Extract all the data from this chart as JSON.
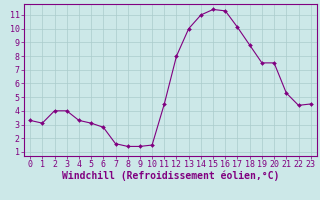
{
  "x": [
    0,
    1,
    2,
    3,
    4,
    5,
    6,
    7,
    8,
    9,
    10,
    11,
    12,
    13,
    14,
    15,
    16,
    17,
    18,
    19,
    20,
    21,
    22,
    23
  ],
  "y": [
    3.3,
    3.1,
    4.0,
    4.0,
    3.3,
    3.1,
    2.8,
    1.6,
    1.4,
    1.4,
    1.5,
    4.5,
    8.0,
    10.0,
    11.0,
    11.4,
    11.3,
    10.1,
    8.8,
    7.5,
    7.5,
    5.3,
    4.4,
    4.5
  ],
  "line_color": "#800080",
  "marker": "D",
  "marker_size": 2,
  "bg_color": "#cce8e8",
  "grid_color": "#aacccc",
  "xlabel": "Windchill (Refroidissement éolien,°C)",
  "xlim": [
    -0.5,
    23.5
  ],
  "ylim": [
    0.7,
    11.8
  ],
  "yticks": [
    1,
    2,
    3,
    4,
    5,
    6,
    7,
    8,
    9,
    10,
    11
  ],
  "xticks": [
    0,
    1,
    2,
    3,
    4,
    5,
    6,
    7,
    8,
    9,
    10,
    11,
    12,
    13,
    14,
    15,
    16,
    17,
    18,
    19,
    20,
    21,
    22,
    23
  ],
  "tick_fontsize": 6,
  "xlabel_fontsize": 7,
  "axis_color": "#800080",
  "spine_color": "#800080"
}
